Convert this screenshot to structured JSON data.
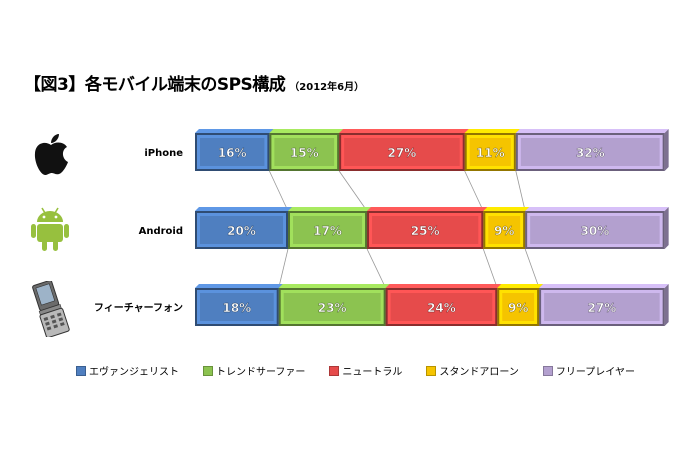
{
  "header": {
    "title": "【図3】各モバイル端末のSPS構成",
    "subtitle": "（2012年6月）"
  },
  "colors": {
    "evangelist": "#4f7fc0",
    "trend": "#8cc350",
    "neutral": "#e64b4b",
    "standalone": "#f5c400",
    "free": "#b3a0cf",
    "connector": "#999999"
  },
  "icons": [
    "apple-icon",
    "android-icon",
    "feature-phone-icon"
  ],
  "chart_data": {
    "type": "bar",
    "orientation": "horizontal-stacked-100",
    "categories": [
      "iPhone",
      "Android",
      "フィーチャーフォン"
    ],
    "series": [
      {
        "name": "エヴァンジェリスト",
        "color": "#4f7fc0",
        "values": [
          16,
          20,
          18
        ]
      },
      {
        "name": "トレンドサーファー",
        "color": "#8cc350",
        "values": [
          15,
          17,
          23
        ]
      },
      {
        "name": "ニュートラル",
        "color": "#e64b4b",
        "values": [
          27,
          25,
          24
        ]
      },
      {
        "name": "スタンドアローン",
        "color": "#f5c400",
        "values": [
          11,
          9,
          9
        ]
      },
      {
        "name": "フリープレイヤー",
        "color": "#b3a0cf",
        "values": [
          32,
          30,
          27
        ]
      }
    ],
    "value_suffix": "%",
    "legend_position": "bottom"
  }
}
